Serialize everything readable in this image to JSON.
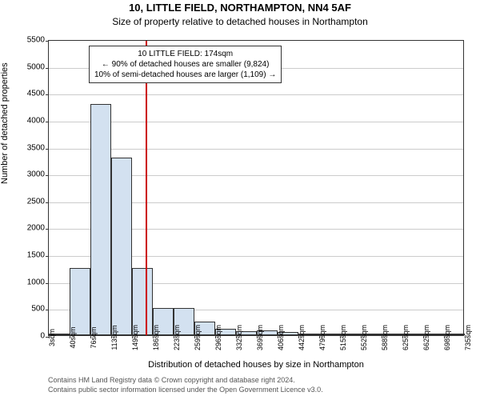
{
  "title": "10, LITTLE FIELD, NORTHAMPTON, NN4 5AF",
  "subtitle": "Size of property relative to detached houses in Northampton",
  "ylabel": "Number of detached properties",
  "xlabel": "Distribution of detached houses by size in Northampton",
  "footer1": "Contains HM Land Registry data © Crown copyright and database right 2024.",
  "footer2": "Contains public sector information licensed under the Open Government Licence v3.0.",
  "chart": {
    "type": "histogram",
    "background_color": "#ffffff",
    "grid_color": "#cccccc",
    "bar_color": "#d3e1f0",
    "bar_border_color": "#333333",
    "axis_color": "#333333",
    "ref_line_color": "#cc0000",
    "ref_line_x": 174,
    "title_fontsize": 13,
    "subtitle_fontsize": 12,
    "label_fontsize": 11,
    "tick_fontsize": 10,
    "ylim": [
      0,
      5500
    ],
    "ytick_step": 500,
    "xlim": [
      3,
      735
    ],
    "xticks": [
      3,
      40,
      76,
      113,
      149,
      186,
      223,
      259,
      296,
      332,
      369,
      406,
      442,
      479,
      515,
      552,
      588,
      625,
      662,
      698,
      735
    ],
    "xtick_labels": [
      "3sqm",
      "40sqm",
      "76sqm",
      "113sqm",
      "149sqm",
      "186sqm",
      "223sqm",
      "259sqm",
      "296sqm",
      "332sqm",
      "369sqm",
      "406sqm",
      "442sqm",
      "479sqm",
      "515sqm",
      "552sqm",
      "588sqm",
      "625sqm",
      "662sqm",
      "698sqm",
      "735sqm"
    ],
    "bars": [
      {
        "x_start": 3,
        "x_end": 40,
        "value": 30
      },
      {
        "x_start": 40,
        "x_end": 76,
        "value": 1250
      },
      {
        "x_start": 76,
        "x_end": 113,
        "value": 4300
      },
      {
        "x_start": 113,
        "x_end": 149,
        "value": 3300
      },
      {
        "x_start": 149,
        "x_end": 186,
        "value": 1250
      },
      {
        "x_start": 186,
        "x_end": 223,
        "value": 500
      },
      {
        "x_start": 223,
        "x_end": 259,
        "value": 500
      },
      {
        "x_start": 259,
        "x_end": 296,
        "value": 250
      },
      {
        "x_start": 296,
        "x_end": 332,
        "value": 120
      },
      {
        "x_start": 332,
        "x_end": 369,
        "value": 80
      },
      {
        "x_start": 369,
        "x_end": 406,
        "value": 90
      },
      {
        "x_start": 406,
        "x_end": 442,
        "value": 60
      },
      {
        "x_start": 442,
        "x_end": 479,
        "value": 10
      },
      {
        "x_start": 479,
        "x_end": 515,
        "value": 20
      },
      {
        "x_start": 515,
        "x_end": 552,
        "value": 10
      },
      {
        "x_start": 552,
        "x_end": 588,
        "value": 5
      },
      {
        "x_start": 588,
        "x_end": 625,
        "value": 5
      },
      {
        "x_start": 625,
        "x_end": 662,
        "value": 5
      },
      {
        "x_start": 662,
        "x_end": 698,
        "value": 5
      },
      {
        "x_start": 698,
        "x_end": 735,
        "value": 5
      }
    ],
    "annotation": {
      "line1": "10 LITTLE FIELD: 174sqm",
      "line2": "← 90% of detached houses are smaller (9,824)",
      "line3": "10% of semi-detached houses are larger (1,109) →",
      "box_bg": "#ffffff",
      "box_border": "#333333",
      "fontsize": 10
    }
  }
}
